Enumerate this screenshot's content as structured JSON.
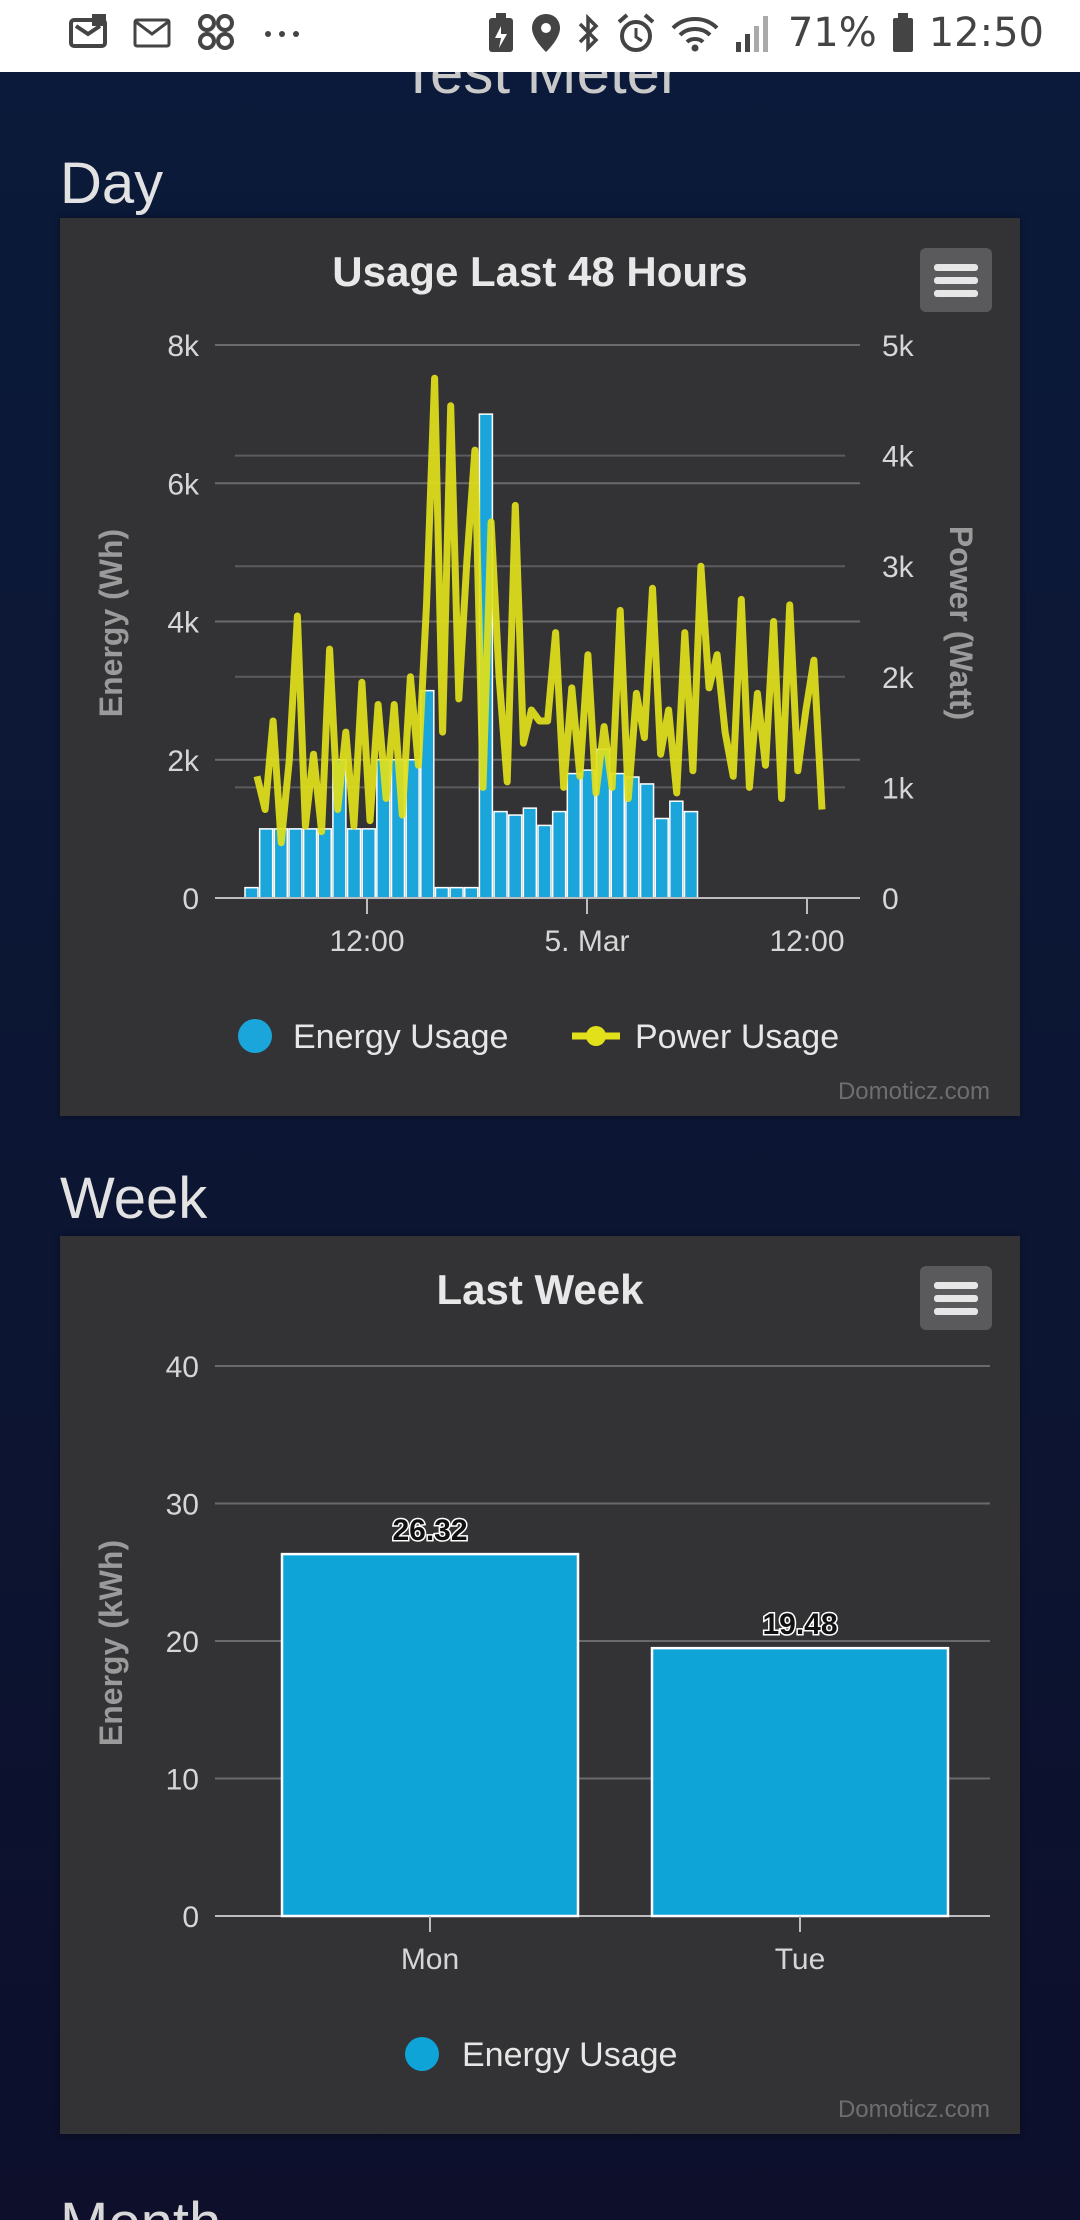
{
  "status_bar": {
    "battery": "71%",
    "time": "12:50",
    "left_icons": [
      "mail-download-icon",
      "mail-icon",
      "app-icon",
      "more-icon"
    ],
    "right_icons": [
      "battery-saver-icon",
      "location-icon",
      "bluetooth-icon",
      "alarm-icon",
      "wifi-icon",
      "signal-icon",
      "battery-icon"
    ]
  },
  "page": {
    "title": "Test Meter",
    "sections": {
      "day": "Day",
      "week": "Week",
      "month": "Month"
    }
  },
  "day_chart": {
    "title": "Usage Last 48 Hours",
    "ylabel_left": "Energy (Wh)",
    "ylabel_right": "Power (Watt)",
    "credit": "Domoticz.com",
    "legend": [
      "Energy Usage",
      "Power Usage"
    ],
    "left_ticks": [
      "0",
      "2k",
      "4k",
      "6k",
      "8k"
    ],
    "right_ticks": [
      "0",
      "1k",
      "2k",
      "3k",
      "4k",
      "5k"
    ],
    "x_ticks": [
      "12:00",
      "5. Mar",
      "12:00"
    ],
    "colors": {
      "energy": "#1ba6db",
      "power": "#e1e01b"
    }
  },
  "week_chart": {
    "title": "Last Week",
    "ylabel": "Energy (kWh)",
    "credit": "Domoticz.com",
    "legend": [
      "Energy Usage"
    ],
    "y_ticks": [
      "0",
      "10",
      "20",
      "30",
      "40"
    ],
    "color": "#0ea4d8"
  },
  "chart_data": [
    {
      "type": "bar",
      "title": "Usage Last 48 Hours",
      "ylabel": "Energy (Wh)",
      "y2label": "Power (Watt)",
      "ylim": [
        0,
        8000
      ],
      "y2lim": [
        0,
        5000
      ],
      "series": [
        {
          "name": "Energy Usage",
          "type": "bar",
          "values": [
            150,
            1000,
            1000,
            1000,
            1000,
            1000,
            2000,
            1000,
            1000,
            2000,
            2000,
            2000,
            3000,
            150,
            150,
            150,
            7000,
            1250,
            1200,
            1300,
            1050,
            1250,
            1800,
            1850,
            2150,
            1800,
            1750,
            1650,
            1150,
            1400,
            1250
          ]
        },
        {
          "name": "Power Usage",
          "type": "line",
          "values": [
            1100,
            800,
            1600,
            500,
            1250,
            2550,
            650,
            1300,
            600,
            2250,
            800,
            1500,
            650,
            1950,
            700,
            1750,
            900,
            1750,
            750,
            2000,
            1200,
            2650,
            4700,
            1500,
            4450,
            1800,
            3050,
            4050,
            1000,
            3400,
            2000,
            1050,
            3550,
            1400,
            1700,
            1600,
            1600,
            2400,
            1000,
            1900,
            1100,
            2200,
            950,
            1550,
            1000,
            2600,
            900,
            1850,
            1450,
            2800,
            1300,
            1700,
            950,
            2400,
            1150,
            3000,
            1900,
            2200,
            1500,
            1100,
            2700,
            1000,
            1850,
            1200,
            2500,
            900,
            2650,
            1150,
            1700,
            2150,
            800
          ]
        }
      ],
      "x_ticks": [
        "12:00",
        "5. Mar",
        "12:00"
      ],
      "legend": [
        "Energy Usage",
        "Power Usage"
      ]
    },
    {
      "type": "bar",
      "title": "Last Week",
      "categories": [
        "Mon",
        "Tue"
      ],
      "values": [
        26.32,
        19.48
      ],
      "data_labels": [
        "26.32",
        "19.48"
      ],
      "ylabel": "Energy (kWh)",
      "ylim": [
        0,
        40
      ],
      "legend": [
        "Energy Usage"
      ]
    }
  ]
}
